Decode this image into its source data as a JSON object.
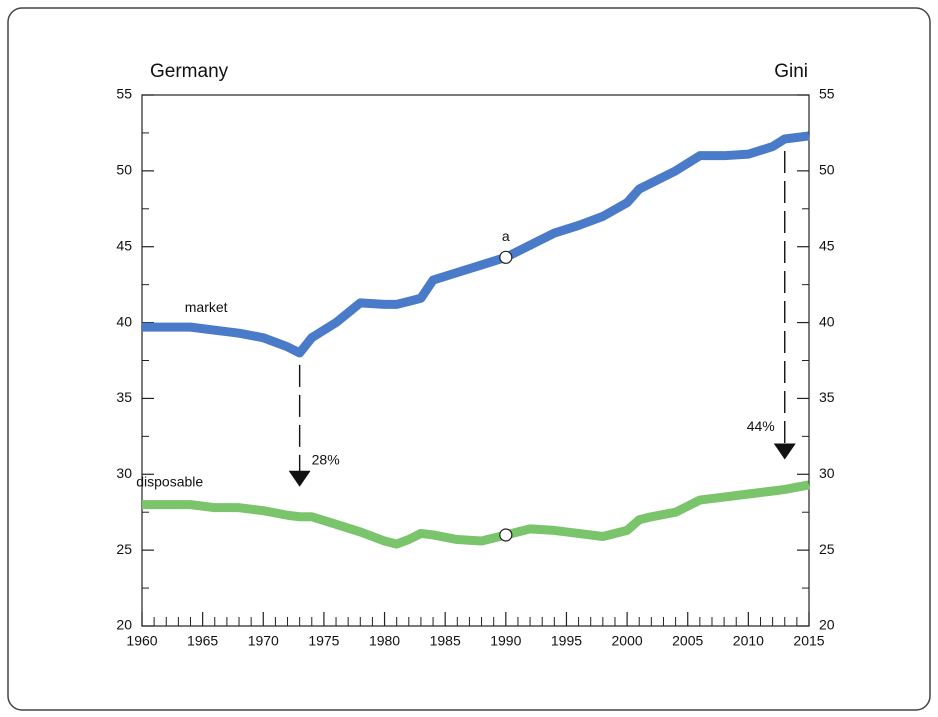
{
  "chart_data": {
    "type": "line",
    "title": "Germany",
    "y_label": "Gini",
    "x": [
      1960,
      1962,
      1964,
      1966,
      1968,
      1970,
      1972,
      1973,
      1974,
      1976,
      1978,
      1980,
      1981,
      1982,
      1983,
      1984,
      1986,
      1988,
      1990,
      1992,
      1994,
      1996,
      1998,
      2000,
      2001,
      2002,
      2004,
      2006,
      2008,
      2010,
      2012,
      2013,
      2015
    ],
    "series": [
      {
        "name": "market",
        "color": "#4a7bc8",
        "values": [
          39.7,
          39.7,
          39.7,
          39.5,
          39.3,
          39.0,
          38.4,
          38.0,
          39.0,
          40.0,
          41.3,
          41.2,
          41.2,
          41.4,
          41.6,
          42.8,
          43.3,
          43.8,
          44.3,
          45.1,
          45.9,
          46.4,
          47.0,
          47.9,
          48.8,
          49.2,
          50.0,
          51.0,
          51.0,
          51.1,
          51.6,
          52.1,
          52.3
        ]
      },
      {
        "name": "disposable",
        "color": "#7ac46b",
        "values": [
          28.0,
          28.0,
          28.0,
          27.8,
          27.8,
          27.6,
          27.3,
          27.2,
          27.2,
          26.7,
          26.2,
          25.6,
          25.4,
          25.7,
          26.1,
          26.0,
          25.7,
          25.6,
          26.0,
          26.4,
          26.3,
          26.1,
          25.9,
          26.3,
          27.0,
          27.2,
          27.5,
          28.3,
          28.5,
          28.7,
          28.9,
          29.0,
          29.3
        ]
      }
    ],
    "annotations": [
      {
        "text": "a",
        "x": 1990
      },
      {
        "text": "28%",
        "x": 1973
      },
      {
        "text": "44%",
        "x": 2013
      }
    ],
    "xlim": [
      1960,
      2015
    ],
    "xticks": [
      1960,
      1965,
      1970,
      1975,
      1980,
      1985,
      1990,
      1995,
      2000,
      2005,
      2010,
      2015
    ],
    "ylim": [
      20,
      55
    ],
    "yticks": [
      20,
      25,
      30,
      35,
      40,
      45,
      50,
      55
    ],
    "y2lim": [
      20,
      55
    ],
    "y2ticks": [
      20,
      25,
      30,
      35,
      40,
      45,
      50,
      55
    ]
  }
}
